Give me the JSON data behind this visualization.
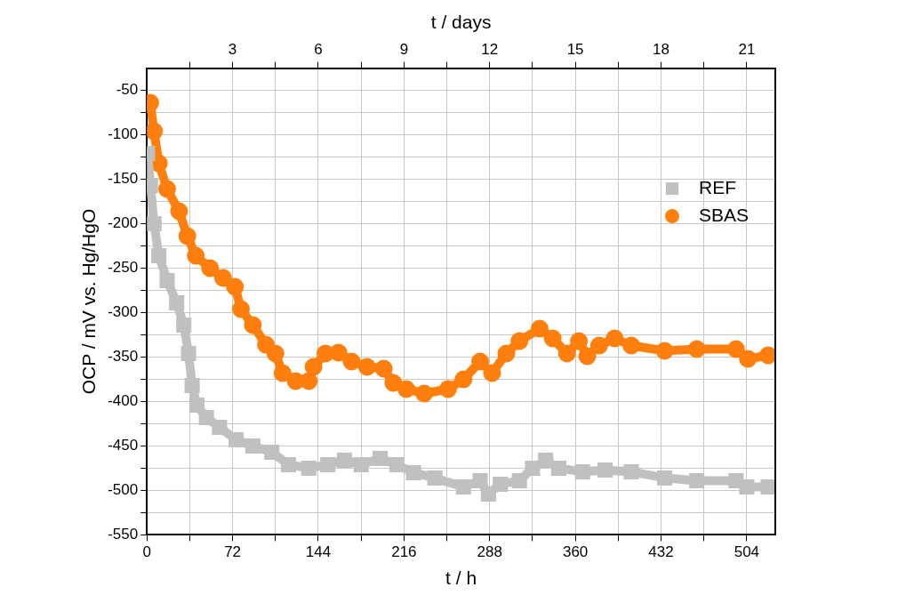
{
  "chart_data": {
    "type": "line",
    "xlabel": "t / h",
    "x2label": "t / days",
    "ylabel": "OCP / mV vs. Hg/HgO",
    "xlim": [
      0,
      528
    ],
    "xticks": [
      0,
      {
        "value": 36,
        "label": null
      },
      72,
      {
        "value": 108,
        "label": null
      },
      144,
      {
        "value": 180,
        "label": null
      },
      216,
      {
        "value": 252,
        "label": null
      },
      288,
      {
        "value": 324,
        "label": null
      },
      360,
      {
        "value": 396,
        "label": null
      },
      432,
      {
        "value": 468,
        "label": null
      },
      504
    ],
    "x2lim": [
      0,
      22
    ],
    "x2ticks": [
      {
        "value": 1.5,
        "label": null
      },
      3,
      {
        "value": 4.5,
        "label": null
      },
      6,
      {
        "value": 7.5,
        "label": null
      },
      9,
      {
        "value": 10.5,
        "label": null
      },
      12,
      {
        "value": 13.5,
        "label": null
      },
      15,
      {
        "value": 16.5,
        "label": null
      },
      18,
      {
        "value": 19.5,
        "label": null
      },
      21
    ],
    "ylim": [
      -550,
      -25
    ],
    "yticks": [
      -550,
      {
        "value": -525,
        "label": null
      },
      -500,
      {
        "value": -475,
        "label": null
      },
      -450,
      {
        "value": -425,
        "label": null
      },
      -400,
      {
        "value": -375,
        "label": null
      },
      -350,
      {
        "value": -325,
        "label": null
      },
      -300,
      {
        "value": -275,
        "label": null
      },
      -250,
      {
        "value": -225,
        "label": null
      },
      -200,
      {
        "value": -175,
        "label": null
      },
      -150,
      {
        "value": -125,
        "label": null
      },
      -100,
      {
        "value": -75,
        "label": null
      },
      -50
    ],
    "grid": true,
    "legend": "top right",
    "series": [
      {
        "name": "REF",
        "color": "#c0c0c0",
        "marker": "square",
        "x": [
          0.5,
          3,
          6,
          10,
          17,
          25,
          31,
          35,
          38,
          42,
          50,
          61,
          75,
          89,
          105,
          119,
          136,
          152,
          166,
          180,
          196,
          210,
          224,
          242,
          266,
          280,
          287,
          297,
          313,
          324,
          335,
          346,
          366,
          385,
          407,
          435,
          462,
          495,
          504,
          522
        ],
        "values": [
          -121,
          -157,
          -200,
          -236,
          -264,
          -289,
          -314,
          -346,
          -382,
          -404,
          -418,
          -429,
          -443,
          -450,
          -457,
          -471,
          -475,
          -471,
          -466,
          -471,
          -464,
          -471,
          -480,
          -486,
          -496,
          -489,
          -504,
          -493,
          -489,
          -475,
          -466,
          -475,
          -479,
          -477,
          -479,
          -486,
          -489,
          -489,
          -496,
          -496
        ]
      },
      {
        "name": "SBAS",
        "color": "#ff7f0e",
        "marker": "circle",
        "x": [
          2.8,
          6,
          10,
          17,
          27,
          34,
          41,
          53,
          64,
          74,
          79,
          89,
          100,
          108,
          114,
          125,
          136,
          140,
          150,
          161,
          172,
          185,
          199,
          207,
          218,
          233,
          253,
          266,
          280,
          290,
          302,
          313,
          330,
          341,
          353,
          363,
          370,
          380,
          393,
          407,
          435,
          462,
          495,
          505,
          522
        ],
        "values": [
          -64,
          -96,
          -132,
          -161,
          -186,
          -214,
          -236,
          -250,
          -261,
          -271,
          -296,
          -314,
          -336,
          -346,
          -368,
          -377,
          -377,
          -361,
          -346,
          -345,
          -355,
          -361,
          -363,
          -379,
          -386,
          -391,
          -386,
          -375,
          -355,
          -368,
          -346,
          -332,
          -318,
          -329,
          -346,
          -332,
          -349,
          -337,
          -329,
          -337,
          -343,
          -341,
          -341,
          -352,
          -348
        ]
      }
    ]
  }
}
